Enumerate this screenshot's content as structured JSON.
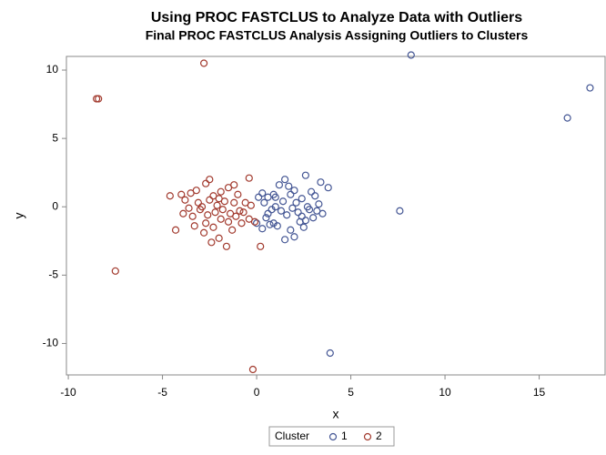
{
  "chart_data": {
    "type": "scatter",
    "title": "Using PROC FASTCLUS to Analyze Data with Outliers",
    "subtitle": "Final PROC FASTCLUS Analysis Assigning Outliers to Clusters",
    "xlabel": "x",
    "ylabel": "y",
    "legend_title": "Cluster",
    "xlim": [
      -10.1,
      18.5
    ],
    "ylim": [
      -12.3,
      11
    ],
    "xticks": [
      -10,
      -5,
      0,
      5,
      10,
      15
    ],
    "yticks": [
      -10,
      -5,
      0,
      5,
      10
    ],
    "grid": false,
    "legend_position": "bottom",
    "series": [
      {
        "name": "1",
        "color": "#445694",
        "x": [
          8.2,
          17.7,
          16.5,
          7.6,
          3.9,
          1.2,
          1.5,
          2.6,
          3.4,
          3.8,
          2.0,
          1.0,
          0.6,
          0.3,
          0.1,
          1.8,
          2.4,
          3.1,
          3.3,
          2.8,
          2.2,
          1.6,
          1.3,
          0.8,
          0.5,
          0.9,
          1.1,
          1.5,
          2.0,
          2.3,
          2.5,
          3.0,
          3.5,
          2.7,
          1.9,
          0.4,
          0.0,
          0.3,
          0.7,
          1.4,
          2.1,
          2.9,
          1.7,
          2.4,
          3.2,
          1.0,
          0.6,
          2.6,
          1.8,
          0.9
        ],
        "y": [
          11.1,
          8.7,
          6.5,
          -0.3,
          -10.7,
          1.6,
          2.0,
          2.3,
          1.8,
          1.4,
          1.2,
          0.7,
          0.7,
          1.0,
          0.7,
          0.9,
          0.6,
          0.8,
          0.2,
          -0.2,
          -0.4,
          -0.6,
          -0.3,
          -0.2,
          -0.8,
          -1.2,
          -1.4,
          -2.4,
          -2.2,
          -1.1,
          -1.5,
          -0.8,
          -0.5,
          0.0,
          -0.1,
          0.3,
          -1.2,
          -1.6,
          -1.3,
          0.4,
          0.3,
          1.1,
          1.5,
          -0.7,
          -0.3,
          0.0,
          -0.5,
          -1.0,
          -1.7,
          0.9
        ]
      },
      {
        "name": "2",
        "color": "#a23a2e",
        "x": [
          -2.8,
          -8.5,
          -8.4,
          -7.5,
          -0.2,
          0.2,
          -0.4,
          -4.3,
          -2.5,
          -2.7,
          -3.2,
          -3.5,
          -4.0,
          -4.6,
          -3.8,
          -3.1,
          -2.3,
          -1.9,
          -1.5,
          -1.2,
          -1.0,
          -0.6,
          -0.3,
          -0.9,
          -1.4,
          -1.8,
          -2.2,
          -2.6,
          -3.0,
          -3.4,
          -3.9,
          -3.3,
          -2.8,
          -2.4,
          -2.0,
          -1.6,
          -1.3,
          -0.8,
          -0.4,
          -0.1,
          -1.1,
          -1.7,
          -2.1,
          -2.5,
          -2.9,
          -3.6,
          -1.5,
          -2.3,
          -2.7,
          -1.9,
          -0.7,
          -2.0,
          -1.2
        ],
        "y": [
          10.5,
          7.9,
          7.9,
          -4.7,
          -11.9,
          -2.9,
          2.1,
          -1.7,
          2.0,
          1.7,
          1.2,
          1.0,
          0.9,
          0.8,
          0.5,
          0.3,
          0.8,
          1.1,
          1.4,
          1.6,
          0.9,
          0.3,
          0.1,
          -0.3,
          -0.5,
          -0.2,
          -0.4,
          -0.6,
          -0.2,
          -0.7,
          -0.5,
          -1.4,
          -1.9,
          -2.6,
          -2.3,
          -2.9,
          -1.7,
          -1.2,
          -0.9,
          -1.1,
          -0.7,
          0.4,
          0.1,
          0.5,
          0.0,
          -0.1,
          -1.1,
          -1.5,
          -1.2,
          -0.9,
          -0.4,
          0.6,
          0.3
        ]
      }
    ]
  }
}
